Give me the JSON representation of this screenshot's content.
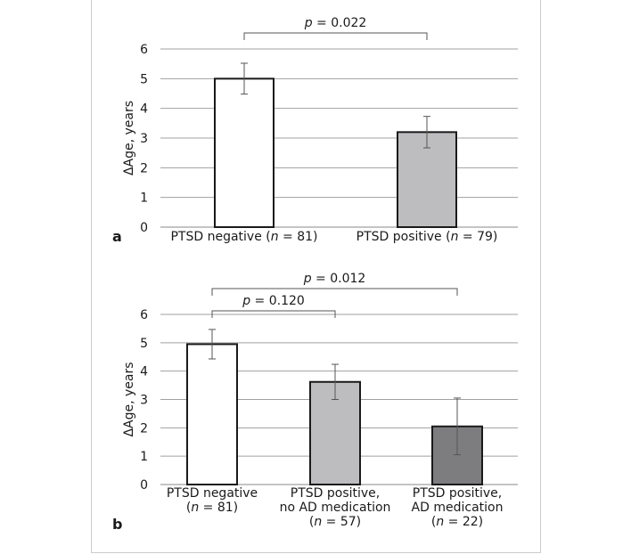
{
  "chart_data": [
    {
      "type": "bar",
      "panel_label": "a",
      "ylabel": "ΔAge, years",
      "ylim": [
        0,
        6
      ],
      "yticks": [
        "0",
        "1",
        "2",
        "3",
        "4",
        "5",
        "6"
      ],
      "grid": true,
      "categories": [
        {
          "lines": [
            [
              {
                "t": "PTSD negative ("
              },
              {
                "t": "n",
                "i": true
              },
              {
                "t": " = 81)"
              }
            ]
          ]
        },
        {
          "lines": [
            [
              {
                "t": "PTSD positive ("
              },
              {
                "t": "n",
                "i": true
              },
              {
                "t": " = 79)"
              }
            ]
          ]
        }
      ],
      "values": [
        5.0,
        3.2
      ],
      "errors": [
        0.52,
        0.53
      ],
      "bar_colors": [
        "#ffffff",
        "#bdbdbf"
      ],
      "comparisons": [
        {
          "from": 0,
          "to": 1,
          "label": [
            {
              "t": "p",
              "i": true
            },
            {
              "t": " = 0.022"
            }
          ]
        }
      ]
    },
    {
      "type": "bar",
      "panel_label": "b",
      "ylabel": "ΔAge, years",
      "ylim": [
        0,
        6
      ],
      "yticks": [
        "0",
        "1",
        "2",
        "3",
        "4",
        "5",
        "6"
      ],
      "grid": true,
      "categories": [
        {
          "lines": [
            [
              {
                "t": "PTSD negative"
              }
            ],
            [
              {
                "t": "("
              },
              {
                "t": "n",
                "i": true
              },
              {
                "t": " = 81)"
              }
            ]
          ]
        },
        {
          "lines": [
            [
              {
                "t": "PTSD positive,"
              }
            ],
            [
              {
                "t": "no AD medication"
              }
            ],
            [
              {
                "t": "("
              },
              {
                "t": "n",
                "i": true
              },
              {
                "t": " = 57)"
              }
            ]
          ]
        },
        {
          "lines": [
            [
              {
                "t": "PTSD positive,"
              }
            ],
            [
              {
                "t": "AD medication"
              }
            ],
            [
              {
                "t": "("
              },
              {
                "t": "n",
                "i": true
              },
              {
                "t": " = 22)"
              }
            ]
          ]
        }
      ],
      "values": [
        4.95,
        3.62,
        2.05
      ],
      "errors": [
        0.52,
        0.62,
        1.0
      ],
      "bar_colors": [
        "#ffffff",
        "#bdbdbf",
        "#7d7d80"
      ],
      "comparisons": [
        {
          "from": 0,
          "to": 1,
          "label": [
            {
              "t": "p",
              "i": true
            },
            {
              "t": " = 0.120"
            }
          ]
        },
        {
          "from": 0,
          "to": 2,
          "label": [
            {
              "t": "p",
              "i": true
            },
            {
              "t": " = 0.012"
            }
          ]
        }
      ]
    }
  ]
}
